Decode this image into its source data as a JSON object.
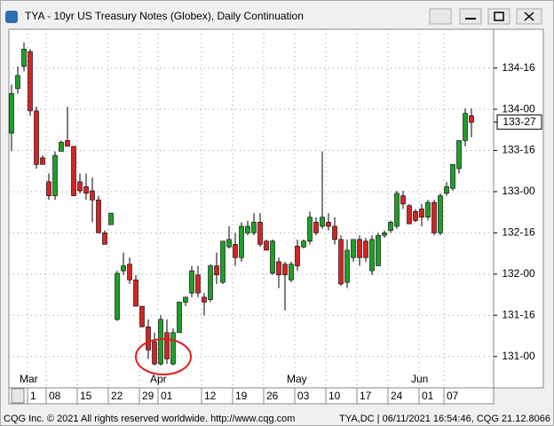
{
  "chart_data": {
    "type": "candlestick",
    "title": "TYA - 10yr US Treasury Notes (Globex), Daily Continuation",
    "categories": [
      null,
      null,
      null,
      "1",
      null,
      null,
      "08",
      null,
      null,
      null,
      null,
      "15",
      null,
      null,
      null,
      null,
      "22",
      null,
      null,
      null,
      null,
      "29",
      null,
      null,
      "01",
      null,
      null,
      null,
      null,
      null,
      null,
      "12",
      null,
      null,
      null,
      null,
      "19",
      null,
      null,
      null,
      null,
      "26",
      null,
      null,
      null,
      null,
      "03",
      null,
      null,
      null,
      null,
      "10",
      null,
      null,
      null,
      null,
      "17",
      null,
      null,
      null,
      null,
      "24",
      null,
      null,
      null,
      null,
      "01",
      null,
      null,
      null,
      "07",
      null,
      null,
      null,
      null
    ],
    "months": [
      null,
      null,
      null,
      "Mar",
      null,
      null,
      null,
      null,
      null,
      null,
      null,
      null,
      null,
      null,
      null,
      null,
      null,
      null,
      null,
      null,
      null,
      null,
      null,
      null,
      "Apr",
      null,
      null,
      null,
      null,
      null,
      null,
      null,
      null,
      null,
      null,
      null,
      null,
      null,
      null,
      null,
      null,
      null,
      null,
      null,
      null,
      null,
      "May",
      null,
      null,
      null,
      null,
      null,
      null,
      null,
      null,
      null,
      null,
      null,
      null,
      null,
      null,
      null,
      null,
      null,
      null,
      null,
      "Jun",
      null,
      null,
      null,
      null,
      null,
      null,
      null,
      null
    ],
    "open": [
      133.71,
      134.25,
      134.52,
      134.7,
      133.98,
      133.41,
      133.12,
      132.95,
      133.49,
      133.62,
      133.55,
      133.12,
      133.06,
      133.01,
      132.9,
      132.5,
      132.6,
      131.45,
      132.04,
      132.12,
      131.93,
      131.61,
      131.36,
      131.18,
      130.91,
      131.29,
      130.91,
      131.29,
      131.66,
      131.77,
      131.99,
      131.72,
      131.69,
      132.1,
      131.9,
      132.33,
      132.36,
      132.2,
      132.5,
      132.5,
      132.63,
      132.4,
      132.01,
      132.15,
      132.12,
      131.93,
      132.34,
      132.33,
      132.4,
      132.63,
      132.58,
      132.63,
      132.58,
      132.42,
      131.9,
      132.2,
      132.42,
      132.4,
      132.04,
      132.1,
      132.47,
      132.53,
      132.58,
      132.95,
      132.83,
      132.76,
      132.79,
      132.69,
      132.87,
      132.5,
      132.98,
      133.04,
      133.28,
      133.62,
      133.92
    ],
    "high": [
      134.3,
      134.52,
      134.81,
      134.73,
      134.03,
      133.44,
      133.22,
      133.49,
      133.62,
      134.03,
      133.55,
      133.22,
      133.22,
      133.17,
      132.95,
      132.53,
      132.74,
      132.04,
      132.26,
      132.2,
      131.99,
      131.61,
      131.45,
      131.29,
      131.5,
      131.45,
      131.34,
      131.66,
      131.72,
      132.1,
      132.1,
      131.77,
      132.12,
      132.26,
      132.4,
      132.58,
      132.5,
      132.63,
      132.65,
      132.74,
      132.74,
      132.42,
      132.42,
      132.2,
      132.15,
      132.15,
      132.42,
      132.42,
      132.76,
      132.69,
      133.49,
      132.74,
      132.69,
      132.47,
      132.42,
      132.42,
      132.47,
      132.44,
      132.47,
      132.5,
      132.53,
      132.65,
      133.01,
      133.01,
      132.85,
      132.79,
      132.85,
      132.9,
      132.9,
      132.98,
      133.12,
      133.33,
      133.62,
      134.01,
      134.01
    ],
    "low": [
      133.49,
      134.19,
      134.46,
      133.92,
      133.28,
      133.33,
      132.9,
      132.9,
      133.49,
      133.55,
      132.95,
      132.98,
      132.9,
      132.63,
      132.5,
      132.36,
      132.6,
      131.43,
      131.99,
      131.88,
      131.61,
      131.36,
      130.97,
      130.89,
      130.89,
      130.91,
      130.89,
      131.29,
      131.61,
      131.72,
      131.72,
      131.5,
      131.66,
      131.88,
      131.88,
      132.31,
      132.1,
      132.15,
      132.47,
      132.47,
      132.33,
      132.29,
      131.99,
      131.83,
      131.56,
      131.9,
      132.04,
      132.31,
      132.36,
      132.47,
      132.55,
      132.53,
      132.36,
      131.86,
      131.83,
      132.15,
      132.1,
      132.15,
      131.99,
      132.1,
      132.44,
      132.5,
      132.55,
      132.79,
      132.61,
      132.63,
      132.58,
      132.65,
      132.47,
      132.47,
      132.95,
      133.01,
      133.22,
      133.55,
      133.66
    ],
    "close": [
      134.19,
      134.41,
      134.73,
      133.98,
      133.33,
      133.33,
      132.95,
      133.44,
      133.6,
      133.55,
      132.95,
      133.01,
      132.98,
      132.9,
      132.5,
      132.36,
      132.74,
      132.01,
      132.1,
      131.93,
      131.61,
      131.36,
      131.08,
      130.91,
      131.45,
      130.97,
      131.29,
      131.66,
      131.72,
      132.04,
      131.77,
      131.66,
      132.1,
      131.99,
      132.4,
      132.42,
      132.2,
      132.58,
      132.58,
      132.63,
      132.36,
      132.29,
      132.4,
      131.99,
      131.99,
      132.12,
      132.1,
      132.4,
      132.69,
      132.5,
      132.69,
      132.58,
      132.42,
      131.88,
      132.29,
      132.42,
      132.2,
      132.2,
      132.42,
      132.47,
      132.5,
      132.63,
      132.98,
      132.85,
      132.61,
      132.65,
      132.69,
      132.87,
      132.5,
      132.95,
      133.06,
      133.33,
      133.62,
      133.95,
      133.84
    ],
    "up_color": "#1f9e2a",
    "down_color": "#d42424",
    "ylim": [
      130.62,
      134.97
    ],
    "yticks": [
      {
        "value": 131,
        "label": "131-00"
      },
      {
        "value": 131.5,
        "label": "131-16"
      },
      {
        "value": 132,
        "label": "132-00"
      },
      {
        "value": 132.5,
        "label": "132-16"
      },
      {
        "value": 133,
        "label": "133-00"
      },
      {
        "value": 133.5,
        "label": "133-16"
      },
      {
        "value": 134,
        "label": "134-00"
      },
      {
        "value": 134.5,
        "label": "134-16"
      }
    ],
    "last_price": {
      "value": 133.84375,
      "label": "133-27"
    },
    "grid": true
  },
  "footer": {
    "left": "CQG Inc. © 2021 All rights reserved worldwide. http://www.cqg.com",
    "right": "TYA,DC | 06/11/2021 16:54:46, CQG 21.12.8066"
  }
}
